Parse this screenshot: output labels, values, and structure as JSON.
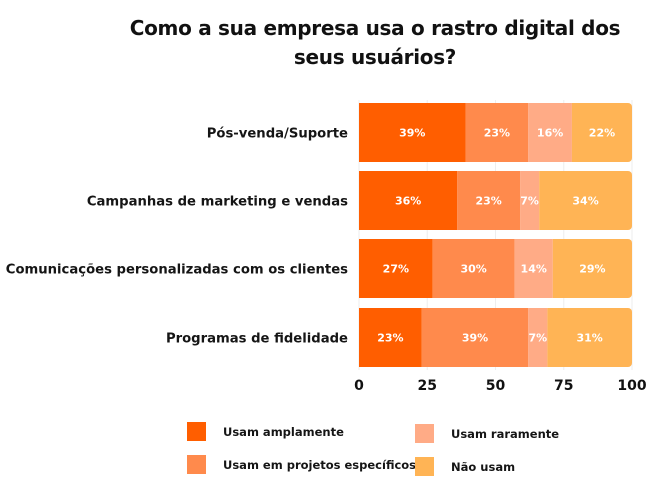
{
  "chart_data": {
    "type": "bar",
    "orientation": "horizontal",
    "stacked": true,
    "title": "Como a sua empresa usa o rastro digital dos seus usuários?",
    "title_lines": [
      "Como a sua empresa usa o rastro digital dos",
      "seus usuários?"
    ],
    "xlabel": "",
    "ylabel": "",
    "xlim": [
      0,
      100
    ],
    "xticks": [
      0,
      25,
      50,
      75,
      100
    ],
    "grid": true,
    "legend_position": "bottom",
    "categories": [
      "Pós-venda/Suporte",
      "Campanhas de marketing e vendas",
      "Comunicações personalizadas com os clientes",
      "Programas de fidelidade"
    ],
    "series": [
      {
        "name": "Usam amplamente",
        "color": "#FF5E00",
        "values": [
          39,
          36,
          27,
          23
        ]
      },
      {
        "name": "Usam em projetos específicos",
        "color": "#FF8A4C",
        "values": [
          23,
          23,
          30,
          39
        ]
      },
      {
        "name": "Usam raramente",
        "color": "#FFAB86",
        "values": [
          16,
          7,
          14,
          7
        ]
      },
      {
        "name": "Não usam",
        "color": "#FFB455",
        "values": [
          22,
          34,
          29,
          31
        ]
      }
    ],
    "value_suffix": "%"
  }
}
